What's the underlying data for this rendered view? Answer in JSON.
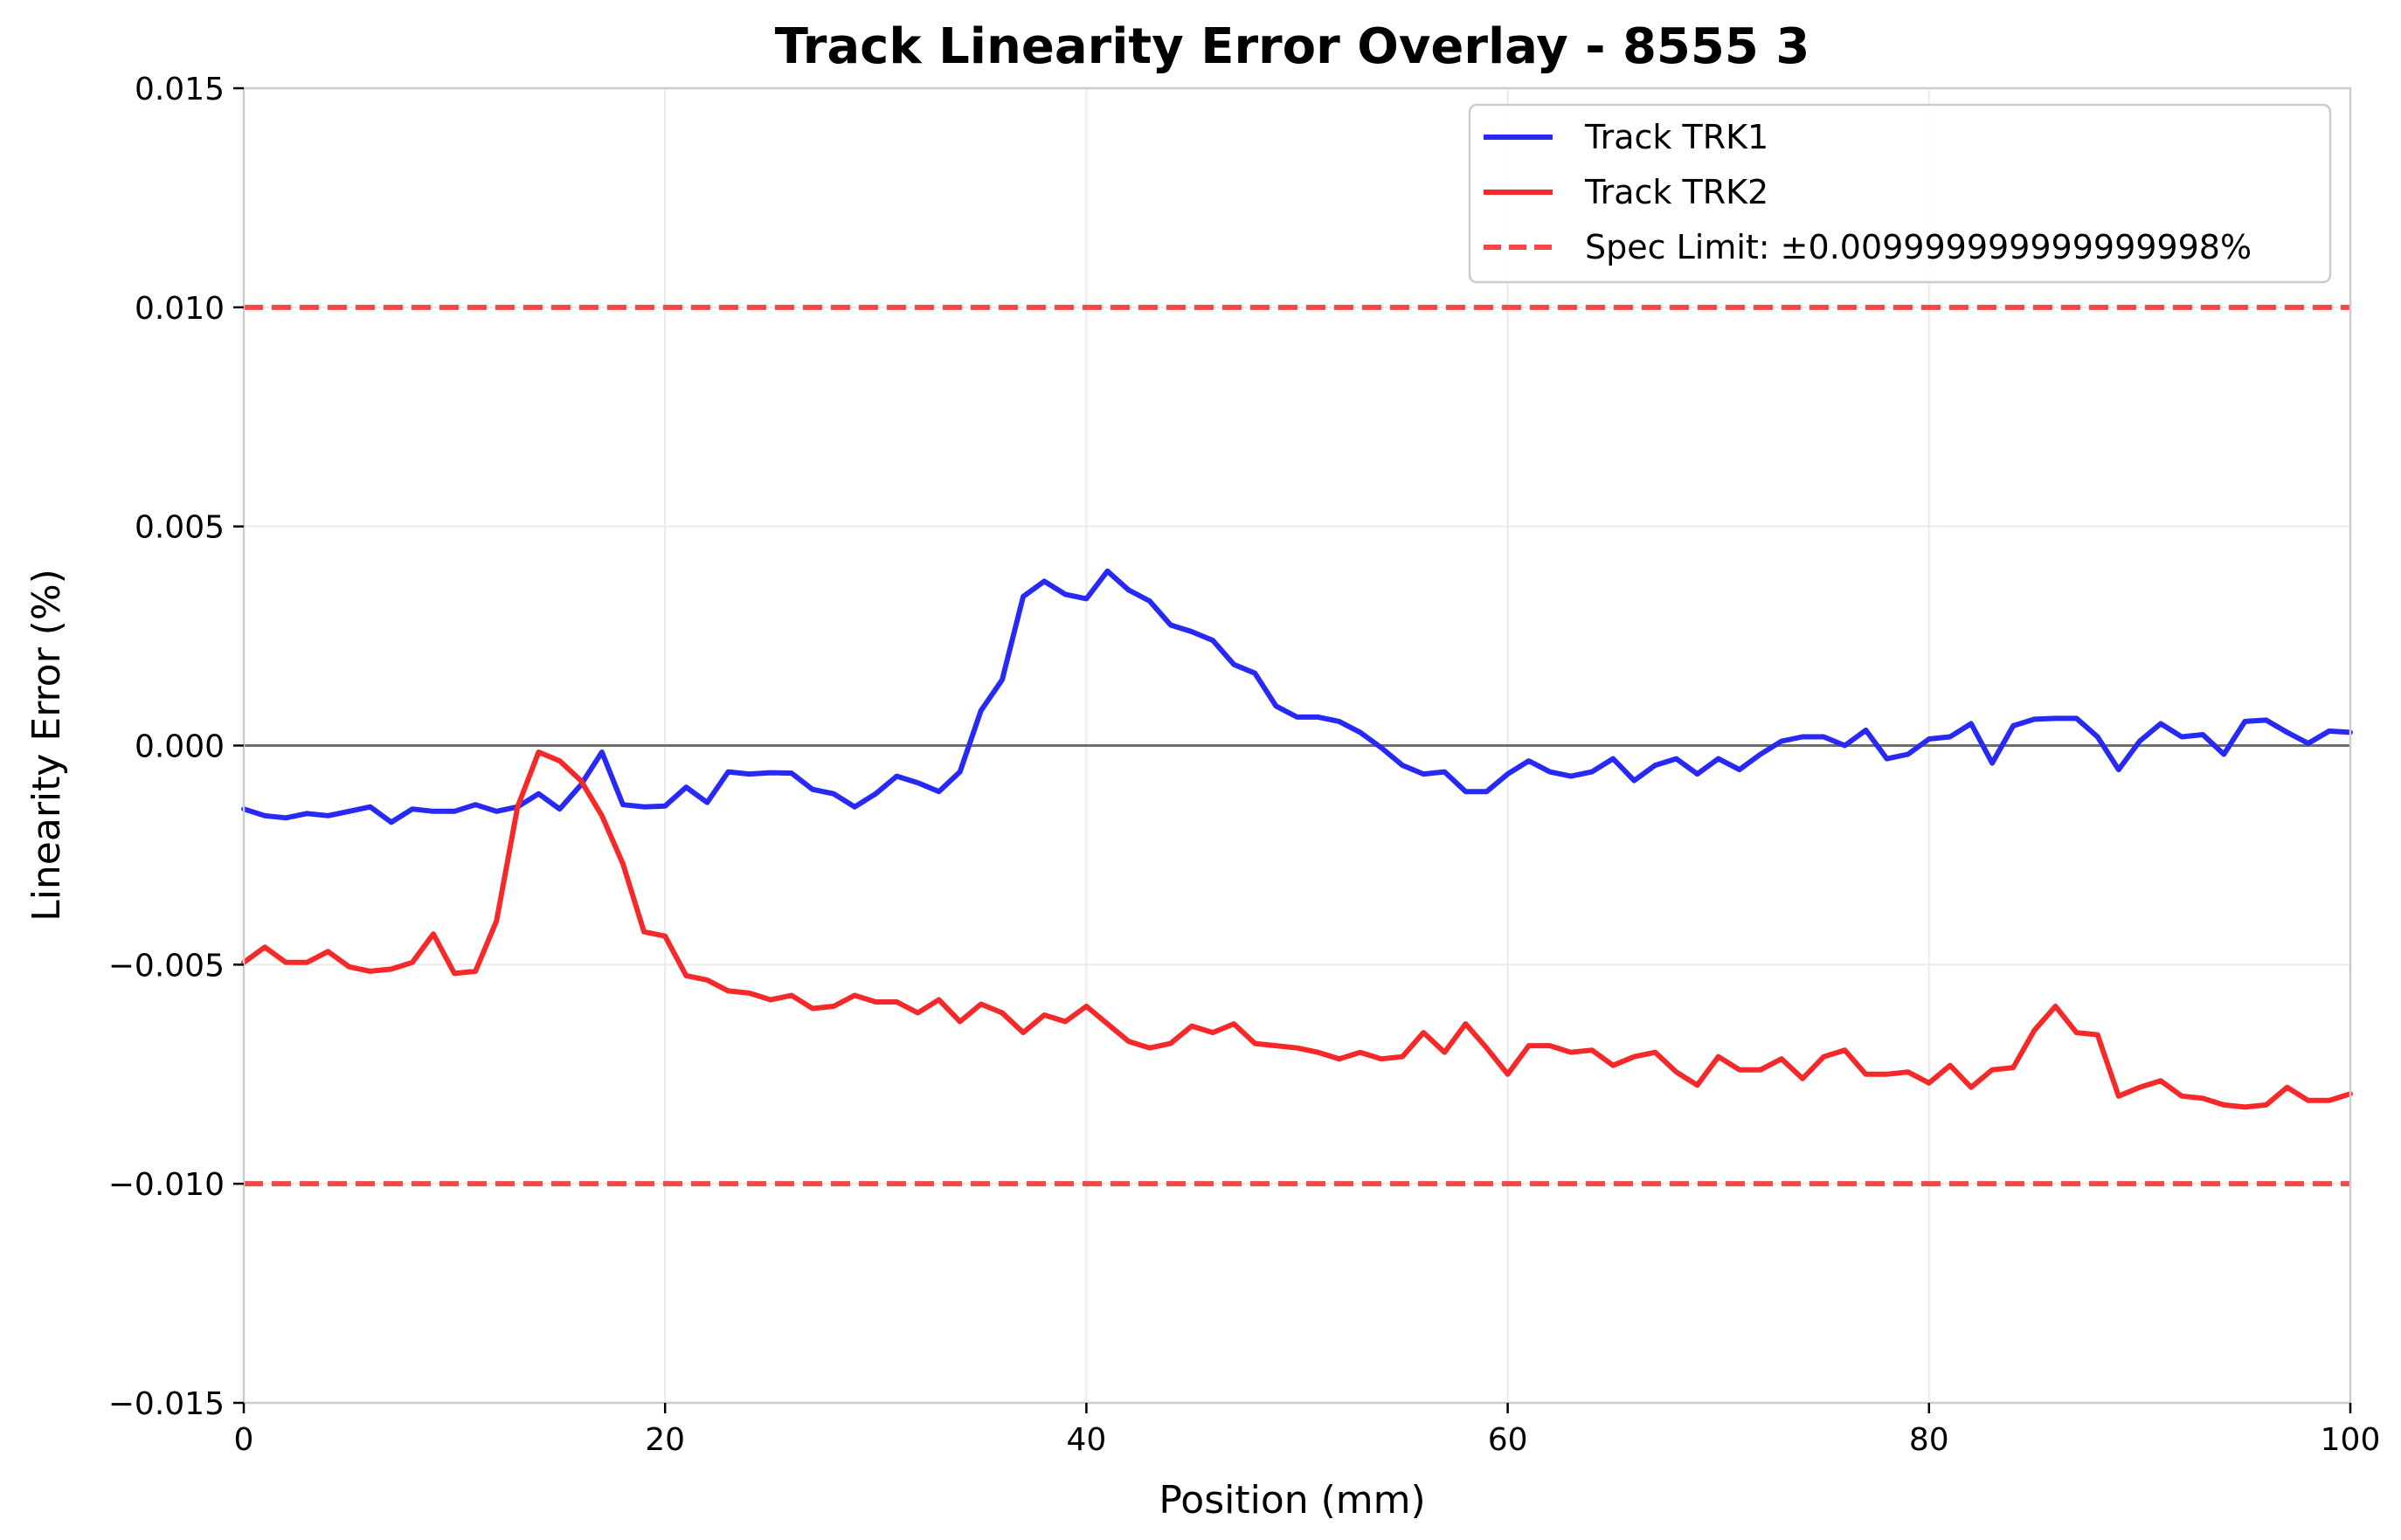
{
  "chart_data": {
    "type": "line",
    "title": "Track Linearity Error Overlay - 8555 3",
    "xlabel": "Position (mm)",
    "ylabel": "Linearity Error (%)",
    "xlim": [
      0,
      100
    ],
    "ylim": [
      -0.015,
      0.015
    ],
    "xticks": [
      0,
      20,
      40,
      60,
      80,
      100
    ],
    "xtick_labels": [
      "0",
      "20",
      "40",
      "60",
      "80",
      "100"
    ],
    "yticks": [
      -0.015,
      -0.01,
      -0.005,
      0,
      0.005,
      0.01,
      0.015
    ],
    "ytick_labels": [
      "−0.015",
      "−0.010",
      "−0.005",
      "0.000",
      "0.005",
      "0.010",
      "0.015"
    ],
    "grid": true,
    "legend_position": "top-right",
    "zero_line": true,
    "x": [
      0,
      1,
      2,
      3,
      4,
      5,
      6,
      7,
      8,
      9,
      10,
      11,
      12,
      13,
      14,
      15,
      16,
      17,
      18,
      19,
      20,
      21,
      22,
      23,
      24,
      25,
      26,
      27,
      28,
      29,
      30,
      31,
      32,
      33,
      34,
      35,
      36,
      37,
      38,
      39,
      40,
      41,
      42,
      43,
      44,
      45,
      46,
      47,
      48,
      49,
      50,
      51,
      52,
      53,
      54,
      55,
      56,
      57,
      58,
      59,
      60,
      61,
      62,
      63,
      64,
      65,
      66,
      67,
      68,
      69,
      70,
      71,
      72,
      73,
      74,
      75,
      76,
      77,
      78,
      79,
      80,
      81,
      82,
      83,
      84,
      85,
      86,
      87,
      88,
      89,
      90,
      91,
      92,
      93,
      94,
      95,
      96,
      97,
      98,
      99,
      100
    ],
    "series": [
      {
        "name": "Track TRK1",
        "color": "#2929f5",
        "style": "solid",
        "values": [
          -0.00145,
          -0.0016,
          -0.00165,
          -0.00155,
          -0.0016,
          -0.0015,
          -0.0014,
          -0.00175,
          -0.00145,
          -0.0015,
          -0.0015,
          -0.00135,
          -0.0015,
          -0.0014,
          -0.0011,
          -0.00145,
          -0.0009,
          -0.00015,
          -0.00135,
          -0.0014,
          -0.00138,
          -0.00095,
          -0.0013,
          -0.0006,
          -0.00065,
          -0.00062,
          -0.00063,
          -0.001,
          -0.0011,
          -0.0014,
          -0.0011,
          -0.0007,
          -0.00085,
          -0.00105,
          -0.0006,
          0.0008,
          0.0015,
          0.0034,
          0.00375,
          0.00345,
          0.00335,
          0.00398,
          0.00355,
          0.0033,
          0.00275,
          0.0026,
          0.0024,
          0.00185,
          0.00165,
          0.0009,
          0.00065,
          0.00065,
          0.00055,
          0.0003,
          -5e-05,
          -0.00045,
          -0.00065,
          -0.0006,
          -0.00105,
          -0.00105,
          -0.00065,
          -0.00035,
          -0.0006,
          -0.0007,
          -0.0006,
          -0.0003,
          -0.0008,
          -0.00045,
          -0.0003,
          -0.00065,
          -0.0003,
          -0.00055,
          -0.0002,
          0.0001,
          0.0002,
          0.0002,
          0.0,
          0.00035,
          -0.0003,
          -0.0002,
          0.00015,
          0.0002,
          0.0005,
          -0.0004,
          0.00045,
          0.0006,
          0.00062,
          0.00062,
          0.0002,
          -0.00055,
          0.0001,
          0.0005,
          0.0002,
          0.00025,
          -0.0002,
          0.00055,
          0.00058,
          0.0003,
          5e-05,
          0.00033,
          0.0003
        ]
      },
      {
        "name": "Track TRK2",
        "color": "#f52929",
        "style": "solid",
        "values": [
          -0.00495,
          -0.0046,
          -0.00495,
          -0.00495,
          -0.0047,
          -0.00505,
          -0.00515,
          -0.0051,
          -0.00495,
          -0.0043,
          -0.0052,
          -0.00515,
          -0.004,
          -0.0014,
          -0.00015,
          -0.00035,
          -0.0008,
          -0.0016,
          -0.0027,
          -0.00425,
          -0.00435,
          -0.00525,
          -0.00535,
          -0.0056,
          -0.00565,
          -0.0058,
          -0.0057,
          -0.006,
          -0.00595,
          -0.0057,
          -0.00585,
          -0.00585,
          -0.0061,
          -0.0058,
          -0.0063,
          -0.0059,
          -0.0061,
          -0.00655,
          -0.00615,
          -0.0063,
          -0.00595,
          -0.00635,
          -0.00675,
          -0.0069,
          -0.0068,
          -0.0064,
          -0.00655,
          -0.00635,
          -0.0068,
          -0.00685,
          -0.0069,
          -0.007,
          -0.00715,
          -0.007,
          -0.00715,
          -0.0071,
          -0.00655,
          -0.007,
          -0.00635,
          -0.0069,
          -0.0075,
          -0.00685,
          -0.00685,
          -0.007,
          -0.00695,
          -0.0073,
          -0.0071,
          -0.007,
          -0.00745,
          -0.00775,
          -0.0071,
          -0.0074,
          -0.0074,
          -0.00715,
          -0.0076,
          -0.0071,
          -0.00695,
          -0.0075,
          -0.0075,
          -0.00745,
          -0.0077,
          -0.0073,
          -0.0078,
          -0.0074,
          -0.00735,
          -0.0065,
          -0.00595,
          -0.00655,
          -0.0066,
          -0.008,
          -0.0078,
          -0.00765,
          -0.008,
          -0.00805,
          -0.0082,
          -0.00825,
          -0.0082,
          -0.0078,
          -0.0081,
          -0.0081,
          -0.00795
        ]
      }
    ],
    "reference_lines": [
      {
        "name": "Spec Limit: ±0.009999999999999998%",
        "values": [
          0.01,
          -0.01
        ],
        "color": "#f54747",
        "style": "dashed"
      }
    ],
    "legend": [
      "Track TRK1",
      "Track TRK2",
      "Spec Limit: ±0.009999999999999998%"
    ]
  }
}
